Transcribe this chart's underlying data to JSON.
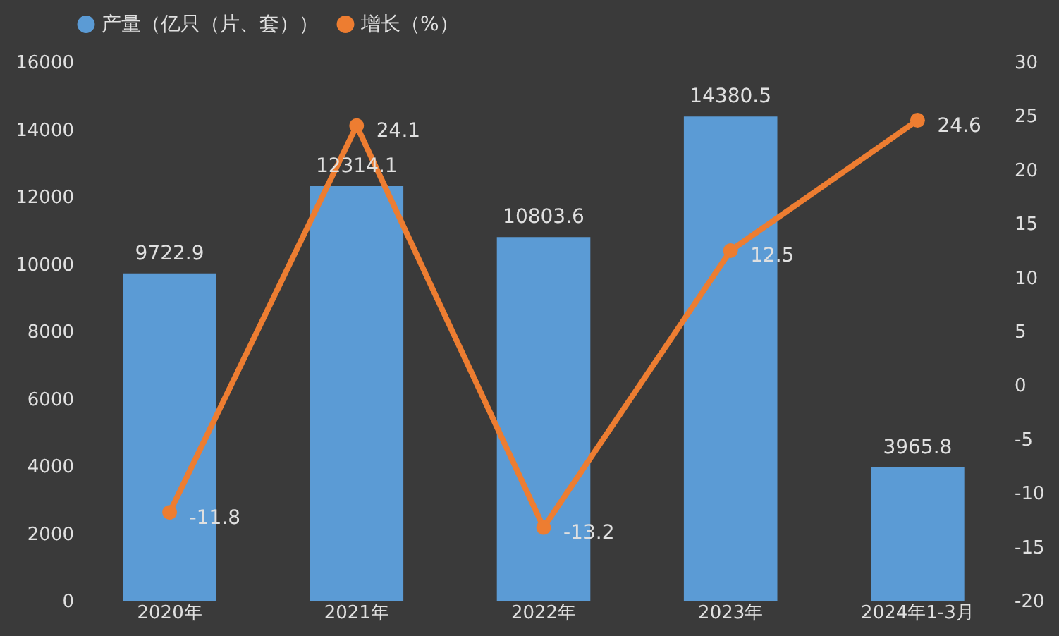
{
  "chart_data": {
    "type": "bar",
    "categories": [
      "2020年",
      "2021年",
      "2022年",
      "2023年",
      "2024年1-3月"
    ],
    "series": [
      {
        "name": "产量（亿只（片、套））",
        "color": "#5b9bd5",
        "values": [
          9722.9,
          12314.1,
          10803.6,
          14380.5,
          3965.8
        ]
      },
      {
        "name": "增长（%）",
        "type": "line",
        "axis": "y2",
        "color": "#ed7d31",
        "values": [
          -11.8,
          24.1,
          -13.2,
          12.5,
          24.6
        ]
      }
    ],
    "ylim": [
      0,
      16000
    ],
    "yticks": [
      0,
      2000,
      4000,
      6000,
      8000,
      10000,
      12000,
      14000,
      16000
    ],
    "y2lim": [
      -20,
      30
    ],
    "y2ticks": [
      -20,
      -15,
      -10,
      -5,
      0,
      5,
      10,
      15,
      20,
      25,
      30
    ],
    "data_labels": true,
    "legend": "top",
    "marker": "circle",
    "grid": false
  }
}
